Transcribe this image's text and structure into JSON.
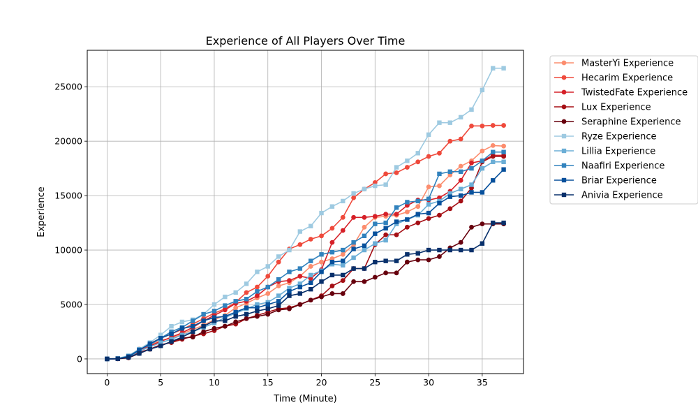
{
  "chart_data": {
    "type": "line",
    "title": "Experience of All Players Over Time",
    "xlabel": "Time (Minute)",
    "ylabel": "Experience",
    "xlim": [
      -1.85,
      38.85
    ],
    "ylim": [
      -1350,
      28350
    ],
    "xticks": [
      0,
      5,
      10,
      15,
      20,
      25,
      30,
      35
    ],
    "yticks": [
      0,
      5000,
      10000,
      15000,
      20000,
      25000
    ],
    "grid": true,
    "legend_position": "outside-right",
    "x": [
      0,
      1,
      2,
      3,
      4,
      5,
      6,
      7,
      8,
      9,
      10,
      11,
      12,
      13,
      14,
      15,
      16,
      17,
      18,
      19,
      20,
      21,
      22,
      23,
      24,
      25,
      26,
      27,
      28,
      29,
      30,
      31,
      32,
      33,
      34,
      35,
      36,
      37
    ],
    "series": [
      {
        "name": "MasterYi Experience",
        "color": "#fc8d6e",
        "marker": "circle",
        "values": [
          0,
          30,
          250,
          750,
          1300,
          1700,
          1900,
          2300,
          2700,
          3100,
          3600,
          4000,
          4700,
          5100,
          5600,
          6000,
          6700,
          7000,
          7600,
          8500,
          8900,
          9200,
          9600,
          10500,
          12100,
          13000,
          13100,
          13200,
          13500,
          14000,
          15800,
          15900,
          16900,
          17700,
          18200,
          19100,
          19600,
          19550
        ]
      },
      {
        "name": "Hecarim Experience",
        "color": "#ef4a3c",
        "marker": "circle",
        "values": [
          0,
          40,
          250,
          900,
          1400,
          1900,
          2300,
          2700,
          3200,
          3700,
          4200,
          4600,
          5200,
          6100,
          6600,
          7600,
          8900,
          10100,
          10500,
          11000,
          11300,
          12000,
          13000,
          14800,
          15600,
          16200,
          17000,
          17100,
          17600,
          18100,
          18600,
          18900,
          20000,
          20200,
          21400,
          21400,
          21450,
          21450
        ]
      },
      {
        "name": "TwistedFate Experience",
        "color": "#d62028",
        "marker": "circle",
        "values": [
          0,
          20,
          200,
          850,
          1200,
          1600,
          2000,
          2400,
          2900,
          3500,
          4000,
          4500,
          5100,
          5300,
          5800,
          6600,
          7100,
          7200,
          7600,
          7400,
          8200,
          10700,
          11800,
          13000,
          13000,
          13100,
          13300,
          13300,
          14100,
          14600,
          14600,
          14800,
          15400,
          16400,
          18000,
          18200,
          18700,
          18700
        ]
      },
      {
        "name": "Lux Experience",
        "color": "#a50f15",
        "marker": "circle",
        "values": [
          0,
          20,
          150,
          600,
          900,
          1300,
          1500,
          1800,
          2100,
          2300,
          2600,
          3000,
          3200,
          3700,
          4000,
          4300,
          4600,
          4700,
          5000,
          5400,
          5800,
          6700,
          7200,
          8300,
          8300,
          10500,
          11400,
          11400,
          12100,
          12500,
          12900,
          13200,
          13800,
          14500,
          15700,
          18100,
          18600,
          18600
        ]
      },
      {
        "name": "Seraphine Experience",
        "color": "#67000d",
        "marker": "circle",
        "values": [
          0,
          10,
          100,
          500,
          900,
          1200,
          1600,
          1900,
          2000,
          2500,
          2800,
          3000,
          3400,
          3700,
          3900,
          4100,
          4500,
          4600,
          5000,
          5400,
          5700,
          6000,
          6000,
          7100,
          7100,
          7500,
          7900,
          7900,
          8900,
          9100,
          9100,
          9400,
          10200,
          10700,
          12100,
          12400,
          12400,
          12400
        ]
      },
      {
        "name": "Ryze Experience",
        "color": "#9ecae1",
        "marker": "square",
        "values": [
          0,
          50,
          300,
          900,
          1500,
          2200,
          3000,
          3400,
          3600,
          4100,
          5000,
          5700,
          6100,
          6900,
          8000,
          8500,
          9400,
          10000,
          11700,
          12200,
          13400,
          14000,
          14500,
          15200,
          15600,
          15900,
          16000,
          17600,
          18200,
          18900,
          20600,
          21700,
          21700,
          22200,
          22900,
          24700,
          26700,
          26700
        ]
      },
      {
        "name": "Lillia Experience",
        "color": "#6baed6",
        "marker": "square",
        "values": [
          0,
          20,
          200,
          700,
          1100,
          1500,
          1800,
          2200,
          2500,
          2900,
          3300,
          3800,
          4200,
          4600,
          5000,
          5200,
          5800,
          6500,
          6900,
          7700,
          8100,
          8700,
          8600,
          9300,
          10000,
          10600,
          10900,
          12400,
          12800,
          13200,
          14200,
          14500,
          15200,
          15600,
          16000,
          17500,
          18100,
          18100
        ]
      },
      {
        "name": "Naafiri Experience",
        "color": "#3182bd",
        "marker": "square",
        "values": [
          0,
          30,
          250,
          850,
          1300,
          1900,
          2500,
          2900,
          3500,
          4100,
          4400,
          4900,
          5300,
          5500,
          6200,
          6600,
          7300,
          8000,
          8300,
          9000,
          9600,
          9800,
          10000,
          10700,
          11300,
          12400,
          12500,
          13900,
          14400,
          14500,
          14700,
          17000,
          17200,
          17200,
          17500,
          18200,
          19000,
          19000
        ]
      },
      {
        "name": "Briar Experience",
        "color": "#08519c",
        "marker": "square",
        "values": [
          0,
          20,
          200,
          800,
          1400,
          1900,
          2300,
          2800,
          3000,
          3500,
          3800,
          3900,
          4300,
          4700,
          4700,
          5000,
          5300,
          6200,
          6600,
          7000,
          8000,
          8900,
          9000,
          10100,
          10400,
          11500,
          12000,
          12600,
          12800,
          13300,
          13400,
          14300,
          14900,
          15000,
          15300,
          15300,
          16400,
          17400
        ]
      },
      {
        "name": "Anivia Experience",
        "color": "#08306b",
        "marker": "square",
        "values": [
          0,
          10,
          150,
          500,
          900,
          1200,
          1600,
          2000,
          2500,
          3000,
          3500,
          3500,
          3900,
          4100,
          4400,
          4600,
          4900,
          5800,
          6000,
          6400,
          7100,
          7700,
          7700,
          8300,
          8300,
          8900,
          9000,
          9000,
          9600,
          9700,
          10000,
          10000,
          10000,
          10000,
          10000,
          10600,
          12500,
          12500
        ]
      }
    ]
  }
}
